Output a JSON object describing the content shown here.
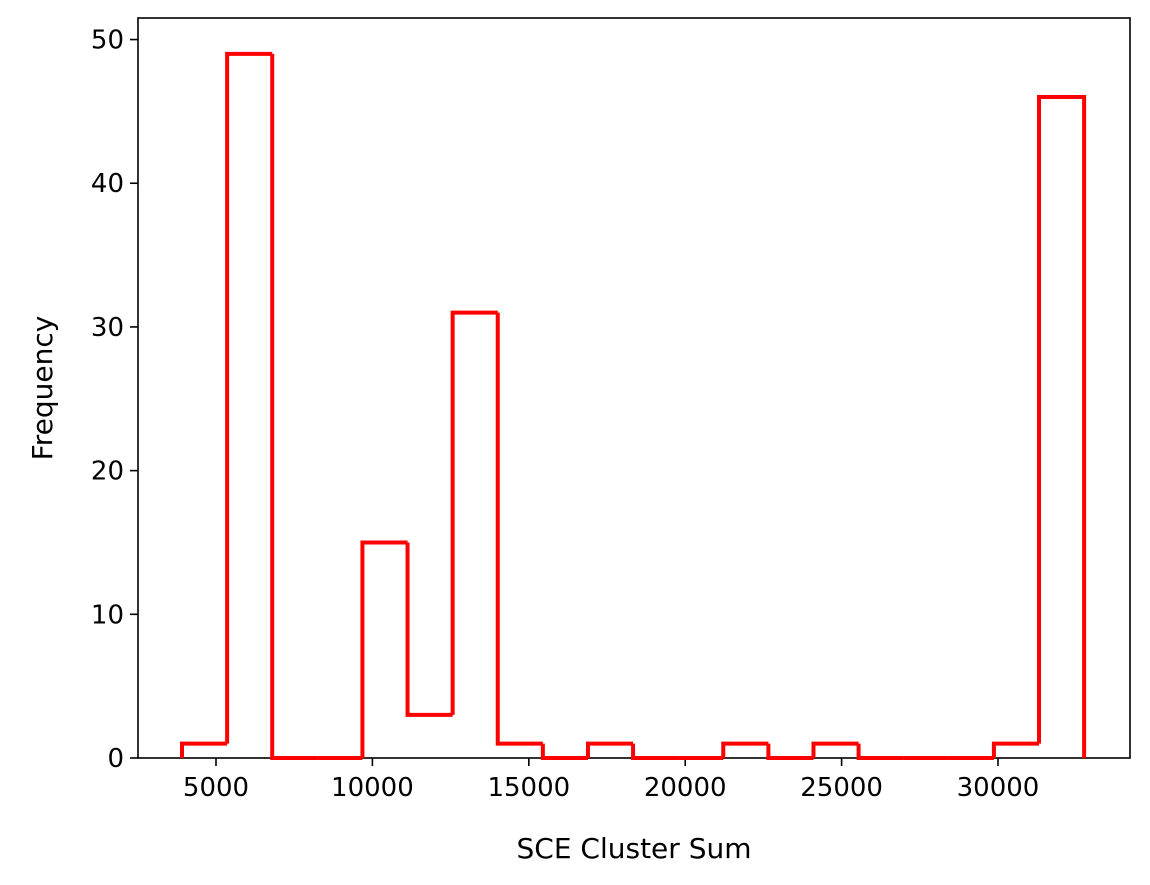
{
  "chart_data": {
    "type": "histogram",
    "xlabel": "SCE Cluster Sum",
    "ylabel": "Frequency",
    "bins": [
      3913,
      5355,
      6797,
      8239,
      9681,
      11123,
      12565,
      14007,
      15449,
      16891,
      18333,
      19775,
      21217,
      22659,
      24101,
      25543,
      26985,
      28427,
      29869,
      31311,
      32753
    ],
    "values": [
      1,
      49,
      0,
      0,
      15,
      3,
      31,
      1,
      0,
      1,
      0,
      0,
      1,
      0,
      1,
      0,
      0,
      0,
      1,
      46
    ],
    "color": "#ff0000",
    "xlim": [
      2506,
      34220
    ],
    "xticks": [
      5000,
      10000,
      15000,
      20000,
      25000,
      30000
    ],
    "ylim": [
      0,
      51.5
    ],
    "yticks": [
      0,
      10,
      20,
      30,
      40,
      50
    ]
  }
}
